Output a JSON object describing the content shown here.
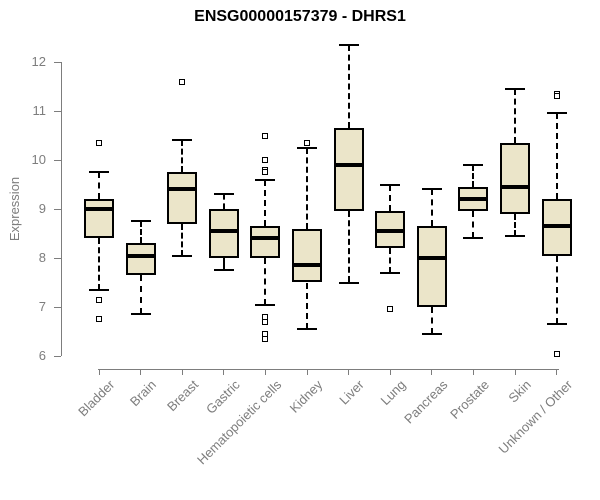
{
  "chart_data": {
    "type": "boxplot",
    "title": "ENSG00000157379 - DHRS1",
    "xlabel": "",
    "ylabel": "Expression",
    "ylim": [
      6,
      12
    ],
    "yticks": [
      12,
      11,
      10,
      9,
      8,
      7,
      6
    ],
    "grid": false,
    "legend": false,
    "categories": [
      "Bladder",
      "Brain",
      "Breast",
      "Gastric",
      "Hematopoietic cells",
      "Kidney",
      "Liver",
      "Lung",
      "Pancreas",
      "Prostate",
      "Skin",
      "Unknown / Other"
    ],
    "boxes": [
      {
        "whisker_low": 7.35,
        "q1": 8.4,
        "median": 9.0,
        "q3": 9.2,
        "whisker_high": 9.75,
        "outliers": [
          10.35,
          7.15,
          6.75
        ]
      },
      {
        "whisker_low": 6.85,
        "q1": 7.65,
        "median": 8.05,
        "q3": 8.3,
        "whisker_high": 8.75,
        "outliers": []
      },
      {
        "whisker_low": 8.05,
        "q1": 8.7,
        "median": 9.4,
        "q3": 9.75,
        "whisker_high": 10.4,
        "outliers": [
          11.6
        ]
      },
      {
        "whisker_low": 7.75,
        "q1": 8.0,
        "median": 8.55,
        "q3": 9.0,
        "whisker_high": 9.3,
        "outliers": []
      },
      {
        "whisker_low": 7.05,
        "q1": 8.0,
        "median": 8.4,
        "q3": 8.65,
        "whisker_high": 9.6,
        "outliers": [
          10.5,
          10.0,
          9.8,
          9.75,
          6.8,
          6.7,
          6.45,
          6.35
        ]
      },
      {
        "whisker_low": 6.55,
        "q1": 7.5,
        "median": 7.85,
        "q3": 8.6,
        "whisker_high": 10.25,
        "outliers": [
          10.35
        ]
      },
      {
        "whisker_low": 7.5,
        "q1": 8.95,
        "median": 9.9,
        "q3": 10.65,
        "whisker_high": 12.35,
        "outliers": []
      },
      {
        "whisker_low": 7.7,
        "q1": 8.2,
        "median": 8.55,
        "q3": 8.95,
        "whisker_high": 9.5,
        "outliers": [
          6.95
        ]
      },
      {
        "whisker_low": 6.45,
        "q1": 7.0,
        "median": 8.0,
        "q3": 8.65,
        "whisker_high": 9.4,
        "outliers": []
      },
      {
        "whisker_low": 8.4,
        "q1": 8.95,
        "median": 9.2,
        "q3": 9.45,
        "whisker_high": 9.9,
        "outliers": []
      },
      {
        "whisker_low": 8.45,
        "q1": 8.9,
        "median": 9.45,
        "q3": 10.35,
        "whisker_high": 11.45,
        "outliers": []
      },
      {
        "whisker_low": 6.65,
        "q1": 8.05,
        "median": 8.65,
        "q3": 9.2,
        "whisker_high": 10.95,
        "outliers": [
          11.35,
          11.3,
          6.05
        ]
      }
    ],
    "colors": {
      "box_fill": "#EBE5C9",
      "box_border": "#000000",
      "median_line": "#000000",
      "whisker": "#000000",
      "outlier_fill": "#ffffff",
      "axis": "#7d7d7d",
      "tick_label": "#7d7d7d",
      "title": "#000000",
      "background": "#ffffff"
    }
  }
}
